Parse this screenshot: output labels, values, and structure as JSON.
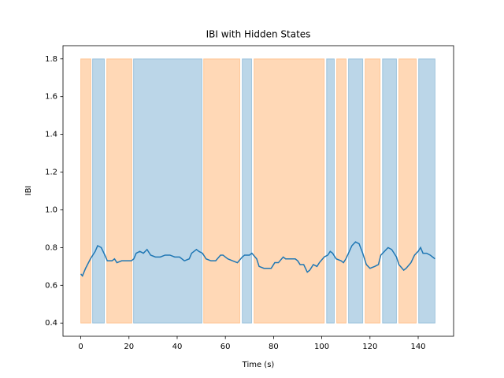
{
  "chart_data": {
    "type": "line",
    "title": "IBI with Hidden States",
    "x_label": "Time (s)",
    "y_label": "IBI",
    "xlim": [
      -7.37,
      154.7
    ],
    "ylim": [
      0.33,
      1.87
    ],
    "xticks": [
      0,
      20,
      40,
      60,
      80,
      100,
      120,
      140
    ],
    "yticks": [
      0.4,
      0.6,
      0.8,
      {
        "value": 1,
        "label": "1.0"
      },
      1.2,
      1.4,
      1.6,
      1.8
    ],
    "grid": false,
    "spans": [
      {
        "x0": 0,
        "x1": 4.2,
        "y0": 0.4,
        "y1": 1.8,
        "color": "#ff7f0e"
      },
      {
        "x0": 4.9,
        "x1": 9.8,
        "y0": 0.4,
        "y1": 1.8,
        "color": "#1f77b4"
      },
      {
        "x0": 10.8,
        "x1": 21.2,
        "y0": 0.4,
        "y1": 1.8,
        "color": "#ff7f0e"
      },
      {
        "x0": 21.9,
        "x1": 50.3,
        "y0": 0.4,
        "y1": 1.8,
        "color": "#1f77b4"
      },
      {
        "x0": 51,
        "x1": 66,
        "y0": 0.4,
        "y1": 1.8,
        "color": "#ff7f0e"
      },
      {
        "x0": 67,
        "x1": 70.9,
        "y0": 0.4,
        "y1": 1.8,
        "color": "#1f77b4"
      },
      {
        "x0": 71.9,
        "x1": 101,
        "y0": 0.4,
        "y1": 1.8,
        "color": "#ff7f0e"
      },
      {
        "x0": 102,
        "x1": 105.2,
        "y0": 0.4,
        "y1": 1.8,
        "color": "#1f77b4"
      },
      {
        "x0": 106.2,
        "x1": 110.1,
        "y0": 0.4,
        "y1": 1.8,
        "color": "#ff7f0e"
      },
      {
        "x0": 111.1,
        "x1": 117,
        "y0": 0.4,
        "y1": 1.8,
        "color": "#1f77b4"
      },
      {
        "x0": 118,
        "x1": 124.2,
        "y0": 0.4,
        "y1": 1.8,
        "color": "#ff7f0e"
      },
      {
        "x0": 125.2,
        "x1": 131,
        "y0": 0.4,
        "y1": 1.8,
        "color": "#1f77b4"
      },
      {
        "x0": 132,
        "x1": 139.2,
        "y0": 0.4,
        "y1": 1.8,
        "color": "#ff7f0e"
      },
      {
        "x0": 140.2,
        "x1": 147,
        "y0": 0.4,
        "y1": 1.8,
        "color": "#1f77b4"
      }
    ],
    "color": "#1f77b4",
    "x": [
      0,
      0.7,
      2,
      4,
      6,
      7,
      8.5,
      10,
      11,
      13,
      14,
      15,
      17,
      19,
      21,
      22,
      23,
      24.5,
      26,
      27.5,
      29,
      31,
      33,
      35,
      37,
      39,
      41,
      43,
      45,
      46,
      48,
      49,
      50.5,
      52,
      54,
      56,
      58,
      59,
      61,
      63,
      65,
      67,
      68,
      70,
      71,
      73,
      74,
      76,
      79,
      80.5,
      82,
      84,
      85,
      87,
      89,
      90,
      91,
      92.5,
      94,
      95,
      96.5,
      98,
      99,
      101,
      102.5,
      103.5,
      104.5,
      106,
      108,
      109,
      110,
      112.5,
      114,
      115.5,
      117,
      118.5,
      120,
      122,
      123.5,
      124.5,
      126,
      127.5,
      129,
      131,
      132,
      134,
      135,
      137,
      138.5,
      140,
      141,
      142,
      143.5,
      145,
      147
    ],
    "values": [
      0.66,
      0.65,
      0.69,
      0.74,
      0.78,
      0.81,
      0.8,
      0.76,
      0.73,
      0.73,
      0.74,
      0.72,
      0.73,
      0.73,
      0.73,
      0.74,
      0.77,
      0.78,
      0.77,
      0.79,
      0.76,
      0.75,
      0.75,
      0.76,
      0.76,
      0.75,
      0.75,
      0.73,
      0.74,
      0.77,
      0.79,
      0.78,
      0.77,
      0.74,
      0.73,
      0.73,
      0.76,
      0.76,
      0.74,
      0.73,
      0.72,
      0.75,
      0.76,
      0.76,
      0.77,
      0.74,
      0.7,
      0.69,
      0.69,
      0.72,
      0.72,
      0.75,
      0.74,
      0.74,
      0.74,
      0.73,
      0.71,
      0.71,
      0.67,
      0.68,
      0.71,
      0.7,
      0.72,
      0.75,
      0.76,
      0.78,
      0.77,
      0.74,
      0.73,
      0.72,
      0.74,
      0.81,
      0.83,
      0.82,
      0.77,
      0.71,
      0.69,
      0.7,
      0.71,
      0.76,
      0.78,
      0.8,
      0.79,
      0.75,
      0.71,
      0.68,
      0.69,
      0.72,
      0.76,
      0.78,
      0.8,
      0.77,
      0.77,
      0.76,
      0.74
    ]
  }
}
